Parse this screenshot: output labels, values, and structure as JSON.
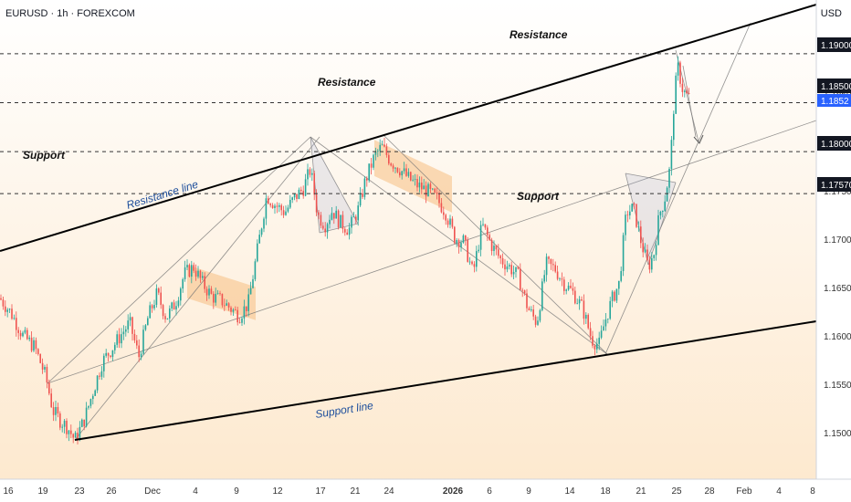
{
  "header": {
    "symbol_title": "EURUSD · 1h · FOREXCOM",
    "currency": "USD"
  },
  "colors": {
    "background_top": "#ffffff",
    "background_bottom": "#fde9cf",
    "candle_up": "#26a69a",
    "candle_down": "#ef5350",
    "trend_line": "#000000",
    "dashed_level": "#333333",
    "rectangle_fill": "#f7c38a",
    "annotation_blue": "#1e4f9c",
    "price_tag_bg": "#131722",
    "current_price_bg": "#2962ff"
  },
  "chart_data": {
    "type": "candlestick",
    "symbol": "EURUSD",
    "timeframe": "1h",
    "y_range": [
      1.1465,
      1.1955
    ],
    "x_ticks": [
      "16",
      "19",
      "23",
      "26",
      "Dec",
      "4",
      "9",
      "12",
      "17",
      "21",
      "24",
      "2026",
      "6",
      "9",
      "14",
      "18",
      "21",
      "25",
      "28",
      "Feb",
      "4",
      "8"
    ],
    "y_ticks": [
      "1.19000",
      "1.18500",
      "1.18000",
      "1.17570",
      "1.17500",
      "1.17000",
      "1.16500",
      "1.16000",
      "1.15500",
      "1.15000"
    ],
    "price_tags": [
      "1.19000",
      "1.18500",
      "1.18000",
      "1.17570"
    ],
    "current_price": "1.1852",
    "levels": [
      {
        "price": 1.19,
        "label": "Resistance"
      },
      {
        "price": 1.185,
        "label": "Resistance"
      },
      {
        "price": 1.18,
        "label": "Support"
      },
      {
        "price": 1.1757,
        "label": "Support"
      }
    ],
    "annotations": [
      "Resistance line",
      "Support line"
    ],
    "trend_lines": [
      {
        "name": "Resistance line",
        "from": [
          "Nov 13",
          1.1735
        ],
        "to": [
          "Feb 8",
          1.193
        ]
      },
      {
        "name": "Support line",
        "from": [
          "Nov 23",
          1.1495
        ],
        "to": [
          "Feb 8",
          1.1615
        ]
      }
    ],
    "price_path": [
      [
        0,
        1.165
      ],
      [
        12,
        1.1635
      ],
      [
        25,
        1.1612
      ],
      [
        38,
        1.16
      ],
      [
        50,
        1.157
      ],
      [
        58,
        1.1535
      ],
      [
        66,
        1.1525
      ],
      [
        74,
        1.1518
      ],
      [
        82,
        1.1505
      ],
      [
        92,
        1.1525
      ],
      [
        102,
        1.1555
      ],
      [
        112,
        1.1585
      ],
      [
        122,
        1.1598
      ],
      [
        132,
        1.1612
      ],
      [
        142,
        1.1625
      ],
      [
        152,
        1.159
      ],
      [
        162,
        1.163
      ],
      [
        172,
        1.1655
      ],
      [
        182,
        1.163
      ],
      [
        192,
        1.1645
      ],
      [
        202,
        1.1675
      ],
      [
        212,
        1.1682
      ],
      [
        222,
        1.1665
      ],
      [
        232,
        1.1652
      ],
      [
        242,
        1.1648
      ],
      [
        252,
        1.164
      ],
      [
        262,
        1.1632
      ],
      [
        272,
        1.1645
      ],
      [
        282,
        1.17
      ],
      [
        292,
        1.1755
      ],
      [
        302,
        1.1745
      ],
      [
        312,
        1.1738
      ],
      [
        322,
        1.1752
      ],
      [
        332,
        1.1762
      ],
      [
        340,
        1.1782
      ],
      [
        348,
        1.1735
      ],
      [
        356,
        1.1725
      ],
      [
        364,
        1.174
      ],
      [
        372,
        1.1728
      ],
      [
        382,
        1.172
      ],
      [
        392,
        1.174
      ],
      [
        400,
        1.177
      ],
      [
        410,
        1.1795
      ],
      [
        418,
        1.1805
      ],
      [
        428,
        1.179
      ],
      [
        438,
        1.1782
      ],
      [
        448,
        1.1772
      ],
      [
        458,
        1.1765
      ],
      [
        468,
        1.176
      ],
      [
        478,
        1.1752
      ],
      [
        488,
        1.1738
      ],
      [
        498,
        1.1712
      ],
      [
        508,
        1.1708
      ],
      [
        518,
        1.1675
      ],
      [
        528,
        1.1725
      ],
      [
        538,
        1.1705
      ],
      [
        548,
        1.169
      ],
      [
        558,
        1.1682
      ],
      [
        568,
        1.1672
      ],
      [
        578,
        1.164
      ],
      [
        588,
        1.1625
      ],
      [
        598,
        1.1685
      ],
      [
        608,
        1.168
      ],
      [
        618,
        1.1665
      ],
      [
        628,
        1.1655
      ],
      [
        638,
        1.164
      ],
      [
        648,
        1.1608
      ],
      [
        656,
        1.1602
      ],
      [
        662,
        1.1625
      ],
      [
        670,
        1.1648
      ],
      [
        678,
        1.1665
      ],
      [
        686,
        1.1738
      ],
      [
        694,
        1.1742
      ],
      [
        702,
        1.1708
      ],
      [
        710,
        1.1682
      ],
      [
        716,
        1.1695
      ],
      [
        722,
        1.1735
      ],
      [
        728,
        1.1752
      ],
      [
        734,
        1.1785
      ],
      [
        738,
        1.1848
      ],
      [
        742,
        1.1888
      ],
      [
        748,
        1.1862
      ],
      [
        754,
        1.1855
      ]
    ],
    "rectangles": [
      {
        "from_x": 205,
        "to_x": 280,
        "top": 1.1684,
        "bottom": 1.165
      },
      {
        "from_x": 410,
        "to_x": 495,
        "top": 1.1812,
        "bottom": 1.1775
      }
    ]
  }
}
